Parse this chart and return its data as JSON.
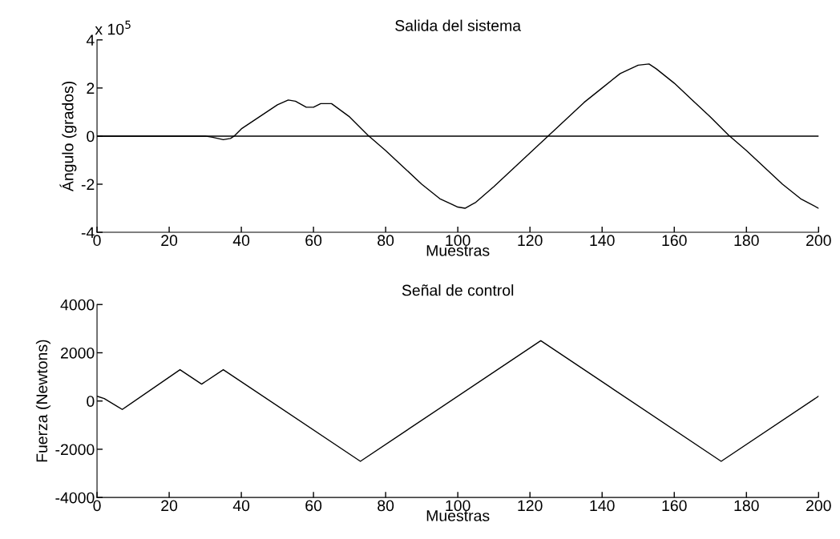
{
  "chart_data": [
    {
      "type": "line",
      "title": "Salida del sistema",
      "xlabel": "Muestras",
      "ylabel": "Ángulo (grados)",
      "annotations": [
        "x 10$^{5}$"
      ],
      "x": [
        0,
        10,
        20,
        30,
        32,
        35,
        37,
        38,
        40,
        45,
        50,
        53,
        55,
        58,
        60,
        62,
        65,
        70,
        75,
        80,
        85,
        90,
        95,
        100,
        102,
        105,
        110,
        115,
        120,
        125,
        130,
        135,
        140,
        145,
        150,
        153,
        155,
        160,
        165,
        170,
        175,
        180,
        185,
        190,
        195,
        200
      ],
      "series": [
        {
          "color": "#000000",
          "values": [
            0,
            0,
            0,
            0,
            -0.05,
            -0.15,
            -0.1,
            0,
            0.3,
            0.8,
            1.3,
            1.5,
            1.45,
            1.2,
            1.2,
            1.35,
            1.35,
            0.8,
            0.05,
            -0.6,
            -1.3,
            -2.0,
            -2.6,
            -2.95,
            -3.0,
            -2.75,
            -2.1,
            -1.4,
            -0.7,
            0,
            0.7,
            1.4,
            2.0,
            2.6,
            2.95,
            3.0,
            2.8,
            2.2,
            1.5,
            0.8,
            0.05,
            -0.6,
            -1.3,
            -2.0,
            -2.6,
            -3.0
          ]
        }
      ],
      "ref_lines": [
        {
          "axis": "y",
          "value": 0,
          "color": "#000000",
          "line_style": "solid"
        }
      ],
      "xlim": [
        0,
        200
      ],
      "xticks": [
        0,
        20,
        40,
        60,
        80,
        100,
        120,
        140,
        160,
        180,
        200
      ],
      "ylim": [
        -4,
        4
      ],
      "yticks": [
        -4,
        -2,
        0,
        2,
        4
      ],
      "grid": false,
      "line_style": "solid",
      "marker": "none"
    },
    {
      "type": "line",
      "title": "Señal de control",
      "xlabel": "Muestras",
      "ylabel": "Fuerza (Newtons)",
      "x": [
        0,
        2,
        7,
        23,
        29,
        35,
        73,
        123,
        173,
        200
      ],
      "series": [
        {
          "color": "#000000",
          "values": [
            200,
            100,
            -350,
            1300,
            700,
            1300,
            -2500,
            2500,
            -2500,
            200
          ]
        }
      ],
      "xlim": [
        0,
        200
      ],
      "xticks": [
        0,
        20,
        40,
        60,
        80,
        100,
        120,
        140,
        160,
        180,
        200
      ],
      "ylim": [
        -4000,
        4000
      ],
      "yticks": [
        -4000,
        -2000,
        0,
        2000,
        4000
      ],
      "grid": false,
      "line_style": "solid",
      "marker": "none"
    }
  ]
}
